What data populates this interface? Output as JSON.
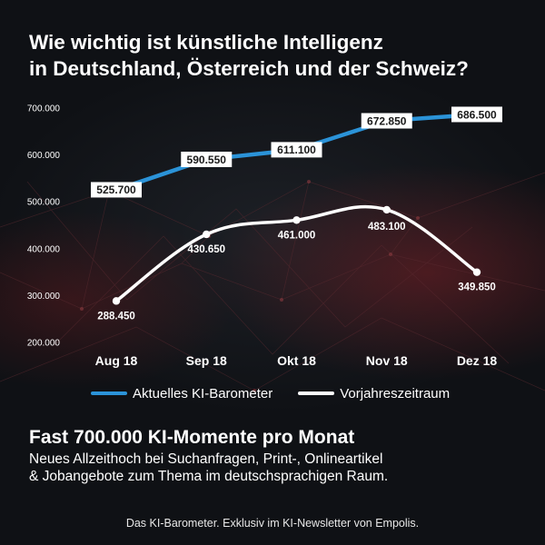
{
  "title": {
    "line1": "Wie wichtig ist künstliche Intelligenz",
    "line2": "in Deutschland, Österreich und der Schweiz?"
  },
  "chart_data": {
    "type": "line",
    "x": [
      "Aug 18",
      "Sep 18",
      "Okt 18",
      "Nov 18",
      "Dez 18"
    ],
    "ylim": [
      200000,
      700000
    ],
    "y_ticks": [
      "200.000",
      "300.000",
      "400.000",
      "500.000",
      "600.000",
      "700.000"
    ],
    "y_tick_values": [
      200000,
      300000,
      400000,
      500000,
      600000,
      700000
    ],
    "grid": false,
    "legend_position": "bottom",
    "series": [
      {
        "name": "Aktuelles KI-Barometer",
        "color": "#2b93d8",
        "values": [
          525700,
          590550,
          611100,
          672850,
          686500
        ],
        "labels": [
          "525.700",
          "590.550",
          "611.100",
          "672.850",
          "686.500"
        ],
        "label_style": "boxed"
      },
      {
        "name": "Vorjahreszeitraum",
        "color": "#ffffff",
        "values": [
          288450,
          430650,
          461000,
          483100,
          349850
        ],
        "labels": [
          "288.450",
          "430.650",
          "461.000",
          "483.100",
          "349.850"
        ],
        "label_style": "plain"
      }
    ]
  },
  "headline": "Fast 700.000 KI-Momente pro Monat",
  "subtext": {
    "line1": "Neues Allzeithoch bei Suchanfragen, Print-, Onlineartikel",
    "line2": "& Jobangebote zum Thema im deutschsprachigen Raum."
  },
  "footer": "Das KI-Barometer. Exklusiv im KI-Newsletter von Empolis."
}
